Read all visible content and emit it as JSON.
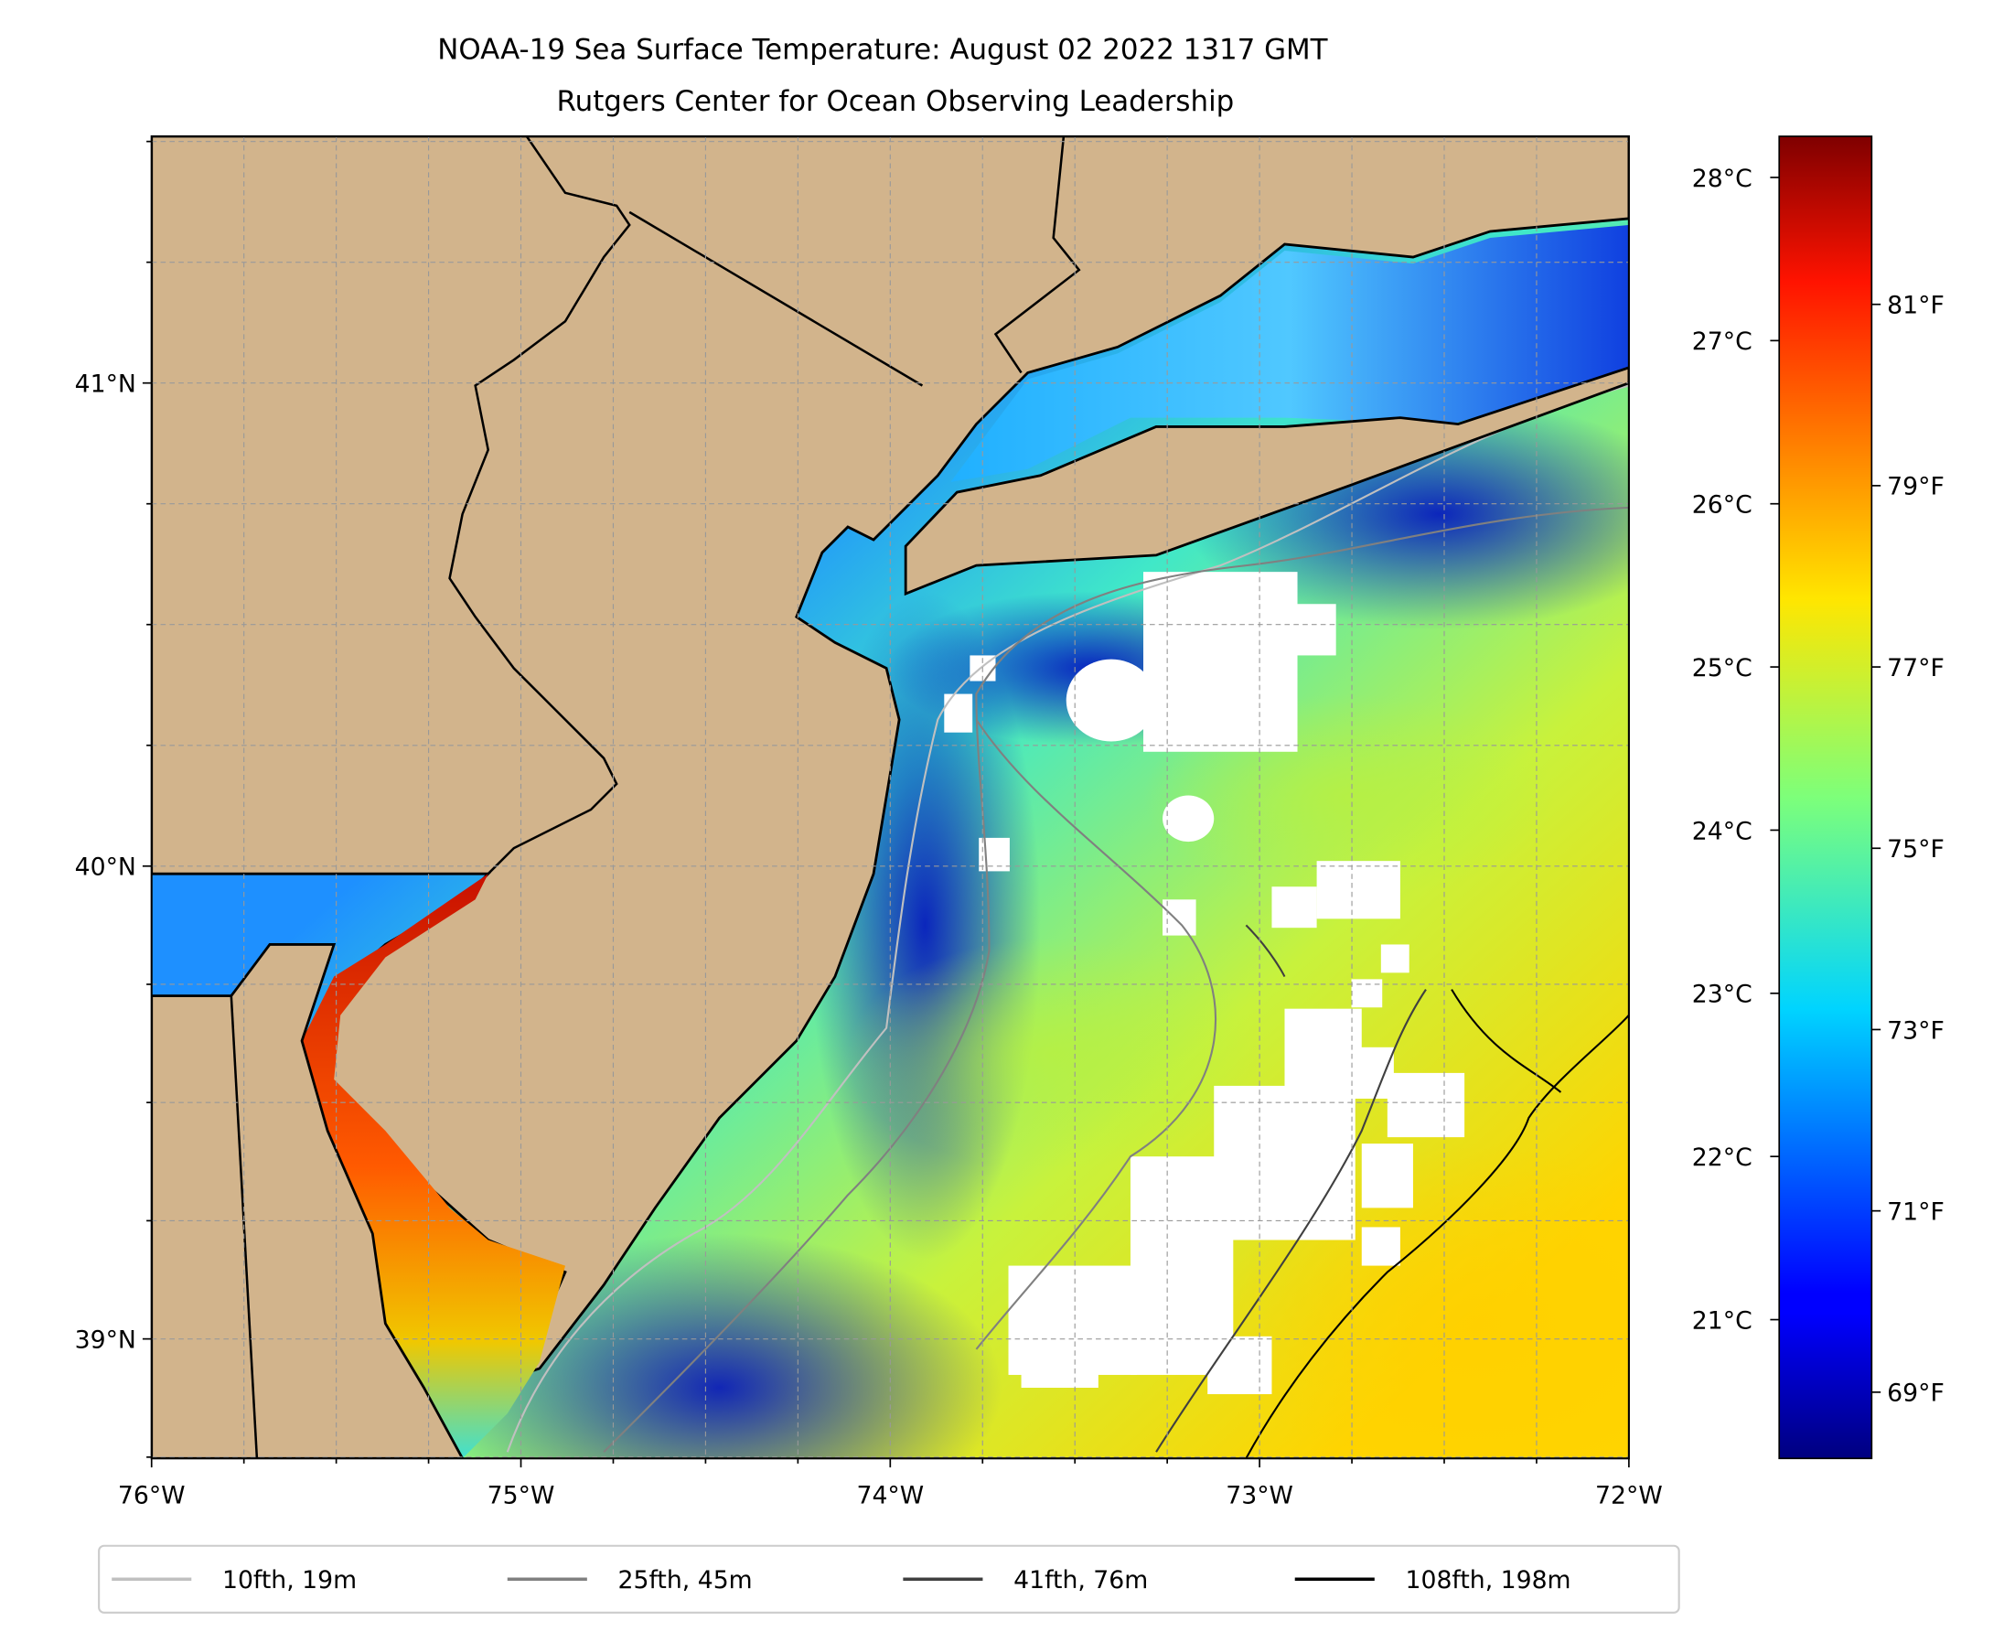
{
  "chart_data": {
    "type": "heatmap",
    "title": "NOAA-19 Sea Surface Temperature: August 02 2022 1317 GMT",
    "subtitle": "Rutgers Center for Ocean Observing Leadership",
    "xlabel": "",
    "ylabel": "",
    "xlim": [
      -76,
      -72
    ],
    "ylim": [
      38.75,
      41.55
    ],
    "x_ticks": [
      {
        "value": -76,
        "label": "76°W"
      },
      {
        "value": -75,
        "label": "75°W"
      },
      {
        "value": -74,
        "label": "74°W"
      },
      {
        "value": -73,
        "label": "73°W"
      },
      {
        "value": -72,
        "label": "72°W"
      }
    ],
    "y_ticks": [
      {
        "value": 41,
        "label": "41°N"
      },
      {
        "value": 40,
        "label": "40°N"
      },
      {
        "value": 39,
        "label": "39°N"
      }
    ],
    "grid": true,
    "colorbar": {
      "colormap": "jet",
      "range_c": [
        20.2,
        28.3
      ],
      "ticks_c": [
        {
          "value": 21,
          "label": "21°C"
        },
        {
          "value": 22,
          "label": "22°C"
        },
        {
          "value": 23,
          "label": "23°C"
        },
        {
          "value": 24,
          "label": "24°C"
        },
        {
          "value": 25,
          "label": "25°C"
        },
        {
          "value": 26,
          "label": "26°C"
        },
        {
          "value": 27,
          "label": "27°C"
        },
        {
          "value": 28,
          "label": "28°C"
        }
      ],
      "ticks_f": [
        {
          "value": 69,
          "label": "69°F"
        },
        {
          "value": 71,
          "label": "71°F"
        },
        {
          "value": 73,
          "label": "73°F"
        },
        {
          "value": 75,
          "label": "75°F"
        },
        {
          "value": 77,
          "label": "77°F"
        },
        {
          "value": 79,
          "label": "79°F"
        },
        {
          "value": 81,
          "label": "81°F"
        }
      ]
    },
    "legend": {
      "placement": "bottom-center",
      "entries": [
        {
          "label": "10fth, 19m",
          "color": "#c0c0c0"
        },
        {
          "label": "25fth, 45m",
          "color": "#808080"
        },
        {
          "label": "41fth, 76m",
          "color": "#404040"
        },
        {
          "label": "108fth, 198m",
          "color": "#000000"
        }
      ]
    },
    "colors": {
      "land": "#d2b48c",
      "no_data": "#ffffff"
    }
  }
}
